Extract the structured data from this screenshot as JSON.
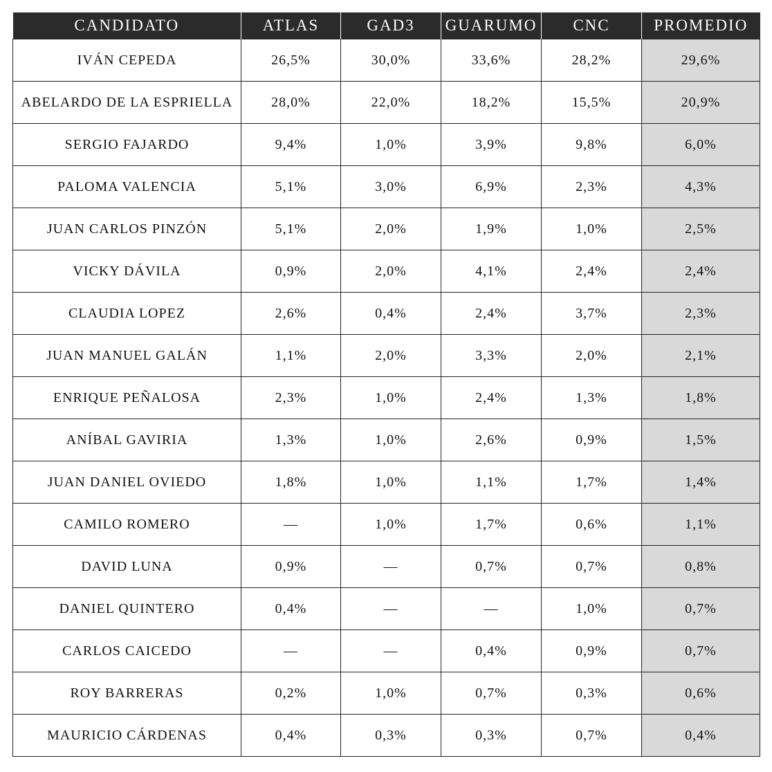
{
  "table": {
    "header": [
      "CANDIDATO",
      "ATLAS",
      "GAD3",
      "GUARUMO",
      "CNC",
      "PROMEDIO"
    ],
    "rows": [
      [
        "IVÁN CEPEDA",
        "26,5%",
        "30,0%",
        "33,6%",
        "28,2%",
        "29,6%"
      ],
      [
        "ABELARDO DE LA ESPRIELLA",
        "28,0%",
        "22,0%",
        "18,2%",
        "15,5%",
        "20,9%"
      ],
      [
        "SERGIO FAJARDO",
        "9,4%",
        "1,0%",
        "3,9%",
        "9,8%",
        "6,0%"
      ],
      [
        "PALOMA VALENCIA",
        "5,1%",
        "3,0%",
        "6,9%",
        "2,3%",
        "4,3%"
      ],
      [
        "JUAN CARLOS PINZÓN",
        "5,1%",
        "2,0%",
        "1,9%",
        "1,0%",
        "2,5%"
      ],
      [
        "VICKY DÁVILA",
        "0,9%",
        "2,0%",
        "4,1%",
        "2,4%",
        "2,4%"
      ],
      [
        "CLAUDIA LOPEZ",
        "2,6%",
        "0,4%",
        "2,4%",
        "3,7%",
        "2,3%"
      ],
      [
        "JUAN MANUEL GALÁN",
        "1,1%",
        "2,0%",
        "3,3%",
        "2,0%",
        "2,1%"
      ],
      [
        "ENRIQUE PEÑALOSA",
        "2,3%",
        "1,0%",
        "2,4%",
        "1,3%",
        "1,8%"
      ],
      [
        "ANÍBAL GAVIRIA",
        "1,3%",
        "1,0%",
        "2,6%",
        "0,9%",
        "1,5%"
      ],
      [
        "JUAN DANIEL OVIEDO",
        "1,8%",
        "1,0%",
        "1,1%",
        "1,7%",
        "1,4%"
      ],
      [
        "CAMILO ROMERO",
        "—",
        "1,0%",
        "1,7%",
        "0,6%",
        "1,1%"
      ],
      [
        "DAVID LUNA",
        "0,9%",
        "—",
        "0,7%",
        "0,7%",
        "0,8%"
      ],
      [
        "DANIEL QUINTERO",
        "0,4%",
        "—",
        "—",
        "1,0%",
        "0,7%"
      ],
      [
        "CARLOS CAICEDO",
        "—",
        "—",
        "0,4%",
        "0,9%",
        "0,7%"
      ],
      [
        "ROY BARRERAS",
        "0,2%",
        "1,0%",
        "0,7%",
        "0,3%",
        "0,6%"
      ],
      [
        "MAURICIO CÁRDENAS",
        "0,4%",
        "0,3%",
        "0,3%",
        "0,7%",
        "0,4%"
      ]
    ]
  }
}
